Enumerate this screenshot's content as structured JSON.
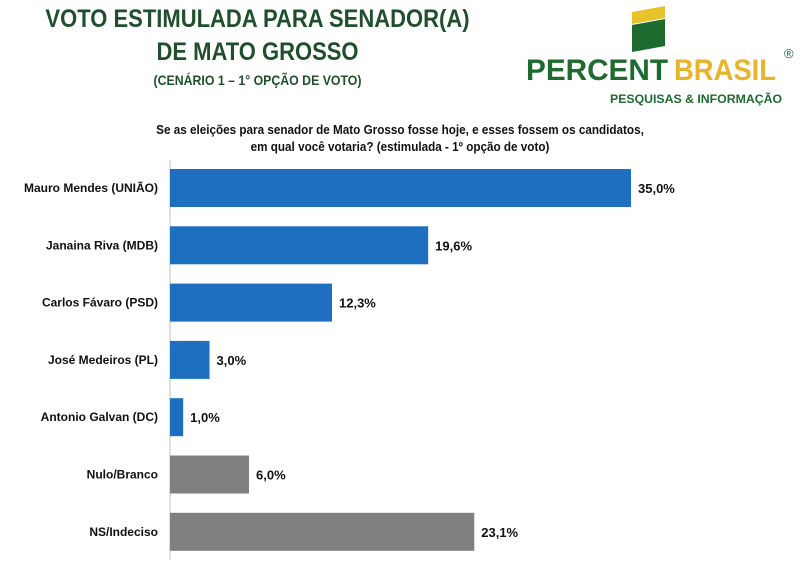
{
  "header": {
    "title_line1": "VOTO ESTIMULADA PARA SENADOR(A)",
    "title_line2": "DE MATO GROSSO",
    "subtitle": "(CENÁRIO 1 – 1° OPÇÃO DE VOTO)"
  },
  "logo": {
    "brand_part1": "PERCENT",
    "brand_part2": "BRASIL",
    "registered": "®",
    "tagline": "PESQUISAS & INFORMAÇÃO"
  },
  "colors": {
    "title": "#1f4f2c",
    "candidate_bar": "#1f6fc1",
    "other_bar": "#808080",
    "logo_green": "#1d6b2e",
    "logo_yellow": "#e8c22a"
  },
  "chart_data": {
    "type": "bar",
    "orientation": "horizontal",
    "title": "Se as eleições para senador de Mato Grosso fosse hoje, e esses fossem os candidatos, em qual você votaria? (estimulada - 1º opção de voto)",
    "categories": [
      "Mauro Mendes (UNIÃO)",
      "Janaina Riva (MDB)",
      "Carlos Fávaro (PSD)",
      "José Medeiros (PL)",
      "Antonio Galvan (DC)",
      "Nulo/Branco",
      "NS/Indeciso"
    ],
    "values": [
      35.0,
      19.6,
      12.3,
      3.0,
      1.0,
      6.0,
      23.1
    ],
    "data_labels": [
      "35,0%",
      "19,6%",
      "12,3%",
      "3,0%",
      "1,0%",
      "6,0%",
      "23,1%"
    ],
    "bar_colors": [
      "#1f6fc1",
      "#1f6fc1",
      "#1f6fc1",
      "#1f6fc1",
      "#1f6fc1",
      "#808080",
      "#808080"
    ],
    "xlim": [
      0,
      35
    ],
    "grid": false,
    "legend": "none"
  }
}
